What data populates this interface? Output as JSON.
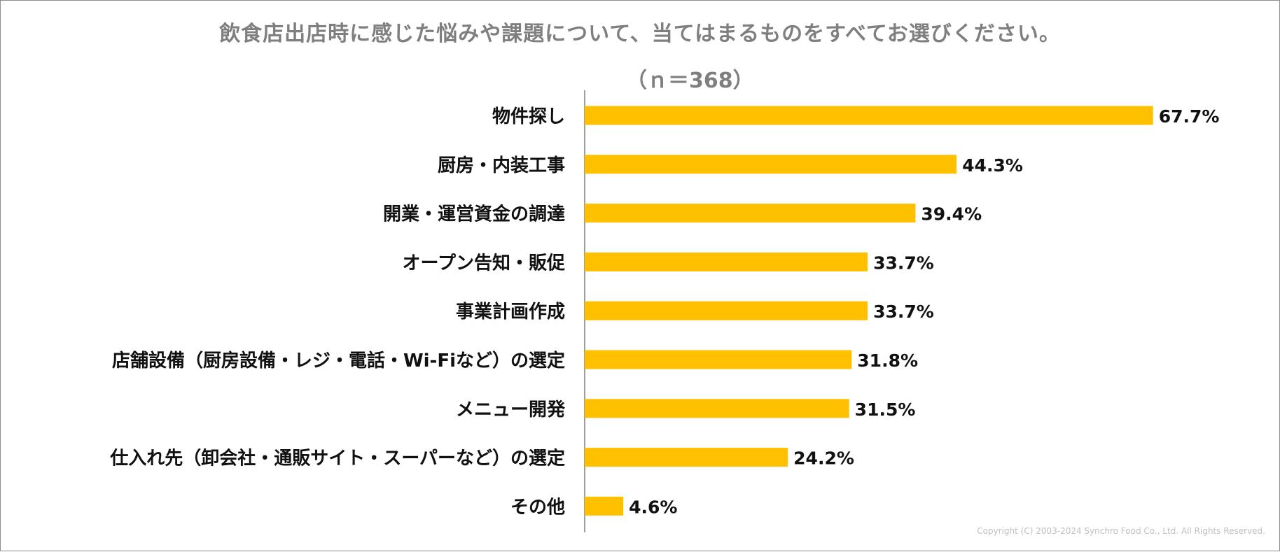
{
  "chart_data": {
    "type": "bar",
    "orientation": "horizontal",
    "title": "飲食店出店時に感じた悩みや課題について、当てはまるものをすべてお選びください。",
    "subtitle": "（ｎ＝368）",
    "categories": [
      "物件探し",
      "厨房・内装工事",
      "開業・運営資金の調達",
      "オープン告知・販促",
      "事業計画作成",
      "店舗設備（厨房設備・レジ・電話・Wi-Fiなど）の選定",
      "メニュー開発",
      "仕入れ先（卸会社・通販サイト・スーパーなど）の選定",
      "その他"
    ],
    "values": [
      67.7,
      44.3,
      39.4,
      33.7,
      33.7,
      31.8,
      31.5,
      24.2,
      4.6
    ],
    "value_labels": [
      "67.7%",
      "44.3%",
      "39.4%",
      "33.7%",
      "33.7%",
      "31.8%",
      "31.5%",
      "24.2%",
      "4.6%"
    ],
    "xlim": [
      0,
      100
    ],
    "bar_color": "#FFC000",
    "axis_color": "#7f7f7f",
    "grid": false,
    "legend": "none"
  },
  "footer": {
    "copyright": "Copyright (C) 2003-2024   Synchro Food Co., Ltd. All Rights Reserved."
  }
}
